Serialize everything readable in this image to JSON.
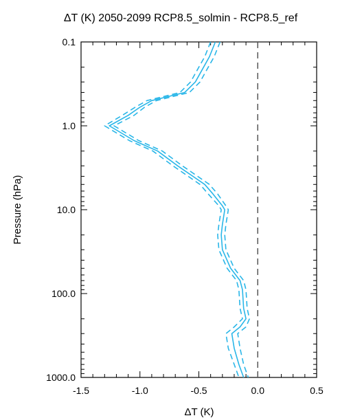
{
  "chart_data": {
    "type": "line",
    "title": "ΔT (K) 2050-2099 RCP8.5_solmin - RCP8.5_ref",
    "xlabel": "ΔT (K)",
    "ylabel": "Pressure (hPa)",
    "xlim": [
      -1.5,
      0.5
    ],
    "ylim": [
      1000,
      0.1
    ],
    "y_scale": "log",
    "x_ticks": [
      -1.5,
      -1.0,
      -0.5,
      0.0,
      0.5
    ],
    "x_tick_labels": [
      "-1.5",
      "-1.0",
      "-0.5",
      "0.0",
      "0.5"
    ],
    "y_ticks": [
      0.1,
      1.0,
      10.0,
      100.0,
      1000.0
    ],
    "y_tick_labels": [
      "0.1",
      "1.0",
      "10.0",
      "100.0",
      "1000.0"
    ],
    "line_color": "#29b6e8",
    "zero_line": {
      "x": 0.0,
      "style": "dashed",
      "color": "#555555"
    },
    "series": [
      {
        "style": "solid",
        "points": [
          [
            -0.36,
            0.1
          ],
          [
            -0.41,
            0.15
          ],
          [
            -0.46,
            0.2
          ],
          [
            -0.53,
            0.3
          ],
          [
            -0.62,
            0.4
          ],
          [
            -0.9,
            0.5
          ],
          [
            -1.0,
            0.6
          ],
          [
            -1.1,
            0.75
          ],
          [
            -1.26,
            1.0
          ],
          [
            -1.05,
            1.5
          ],
          [
            -0.85,
            2.0
          ],
          [
            -0.68,
            3.0
          ],
          [
            -0.55,
            4.0
          ],
          [
            -0.45,
            5.0
          ],
          [
            -0.38,
            6.5
          ],
          [
            -0.3,
            9.0
          ],
          [
            -0.28,
            10.0
          ],
          [
            -0.3,
            15.0
          ],
          [
            -0.31,
            20.0
          ],
          [
            -0.3,
            30.0
          ],
          [
            -0.23,
            50.0
          ],
          [
            -0.15,
            70.0
          ],
          [
            -0.13,
            90.0
          ],
          [
            -0.12,
            150.0
          ],
          [
            -0.1,
            200.0
          ],
          [
            -0.15,
            250.0
          ],
          [
            -0.22,
            300.0
          ],
          [
            -0.2,
            450.0
          ],
          [
            -0.16,
            700.0
          ],
          [
            -0.12,
            1000.0
          ]
        ]
      },
      {
        "style": "dashed",
        "points": [
          [
            -0.4,
            0.1
          ],
          [
            -0.45,
            0.15
          ],
          [
            -0.5,
            0.2
          ],
          [
            -0.57,
            0.3
          ],
          [
            -0.66,
            0.4
          ],
          [
            -0.94,
            0.5
          ],
          [
            -1.04,
            0.6
          ],
          [
            -1.15,
            0.75
          ],
          [
            -1.3,
            1.0
          ],
          [
            -1.09,
            1.5
          ],
          [
            -0.89,
            2.0
          ],
          [
            -0.72,
            3.0
          ],
          [
            -0.59,
            4.0
          ],
          [
            -0.49,
            5.0
          ],
          [
            -0.42,
            6.5
          ],
          [
            -0.33,
            9.0
          ],
          [
            -0.31,
            10.0
          ],
          [
            -0.33,
            15.0
          ],
          [
            -0.34,
            20.0
          ],
          [
            -0.33,
            30.0
          ],
          [
            -0.26,
            50.0
          ],
          [
            -0.18,
            70.0
          ],
          [
            -0.16,
            90.0
          ],
          [
            -0.15,
            150.0
          ],
          [
            -0.13,
            200.0
          ],
          [
            -0.2,
            250.0
          ],
          [
            -0.27,
            300.0
          ],
          [
            -0.25,
            450.0
          ],
          [
            -0.2,
            700.0
          ],
          [
            -0.16,
            1000.0
          ]
        ]
      },
      {
        "style": "dashed",
        "points": [
          [
            -0.32,
            0.1
          ],
          [
            -0.37,
            0.15
          ],
          [
            -0.42,
            0.2
          ],
          [
            -0.49,
            0.3
          ],
          [
            -0.58,
            0.4
          ],
          [
            -0.86,
            0.5
          ],
          [
            -0.96,
            0.6
          ],
          [
            -1.05,
            0.75
          ],
          [
            -1.22,
            1.0
          ],
          [
            -1.01,
            1.5
          ],
          [
            -0.81,
            2.0
          ],
          [
            -0.64,
            3.0
          ],
          [
            -0.51,
            4.0
          ],
          [
            -0.41,
            5.0
          ],
          [
            -0.34,
            6.5
          ],
          [
            -0.27,
            9.0
          ],
          [
            -0.25,
            10.0
          ],
          [
            -0.27,
            15.0
          ],
          [
            -0.28,
            20.0
          ],
          [
            -0.27,
            30.0
          ],
          [
            -0.2,
            50.0
          ],
          [
            -0.12,
            70.0
          ],
          [
            -0.1,
            90.0
          ],
          [
            -0.09,
            150.0
          ],
          [
            -0.07,
            200.0
          ],
          [
            -0.1,
            250.0
          ],
          [
            -0.17,
            300.0
          ],
          [
            -0.15,
            450.0
          ],
          [
            -0.12,
            700.0
          ],
          [
            -0.08,
            1000.0
          ]
        ]
      }
    ]
  }
}
